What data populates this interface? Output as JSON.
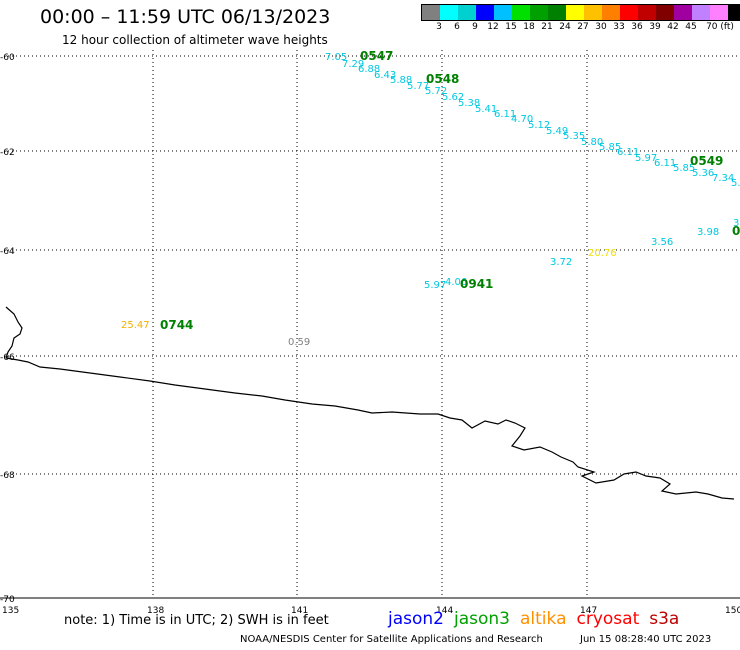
{
  "header": {
    "title": "00:00 – 11:59 UTC 06/13/2023",
    "subtitle": "12 hour collection of altimeter wave heights"
  },
  "legend": {
    "colors": [
      "#808080",
      "#00ffff",
      "#00d0d0",
      "#0000ff",
      "#00c0ff",
      "#00e000",
      "#00a000",
      "#008000",
      "#ffff00",
      "#ffc000",
      "#ff8000",
      "#ff0000",
      "#c00000",
      "#800000",
      "#a000a0",
      "#c080ff",
      "#ff80ff",
      "#000000"
    ],
    "labels": [
      "3",
      "6",
      "9",
      "12",
      "15",
      "18",
      "21",
      "24",
      "27",
      "30",
      "33",
      "36",
      "39",
      "42",
      "45",
      "70 (ft)"
    ]
  },
  "axes": {
    "lon_labels": [
      "135",
      "138",
      "141",
      "144",
      "147",
      "150"
    ],
    "lat_labels": [
      "-60",
      "-62",
      "-64",
      "-66",
      "-68",
      "-70"
    ]
  },
  "tracks": [
    {
      "label": "0547",
      "label_color": "#008000",
      "values": [
        "7.05",
        "7.29",
        "6.88",
        "6.43",
        "5.88",
        "5.77"
      ],
      "value_color": "#00c8e0"
    },
    {
      "label": "0548",
      "label_color": "#008000",
      "values": [
        "5.72",
        "5.62",
        "5.38",
        "5.41",
        "6.11",
        "4.70",
        "5.12",
        "5.49",
        "5.35",
        "5.80",
        "5.85",
        "6.11",
        "5.97",
        "6.11",
        "5.85",
        "5.36",
        "7.34",
        "5."
      ],
      "value_color": "#00c8e0"
    },
    {
      "label": "0549",
      "label_color": "#008000",
      "values": [],
      "value_color": "#00c8e0"
    },
    {
      "label": "0941",
      "label_color": "#008000",
      "values": [
        "5.97",
        "4.06",
        "3.72",
        "3.56",
        "3.98",
        "3."
      ],
      "value_color": "#00c8e0"
    },
    {
      "label": "0744",
      "label_color": "#008000",
      "values": [
        "25.47"
      ],
      "value_color": "#f0b000"
    }
  ],
  "extra_values": [
    {
      "value": "20.76",
      "color": "#f0e000"
    },
    {
      "value": "0.59",
      "color": "#808080"
    }
  ],
  "footer": {
    "note": "note: 1) Time is in UTC; 2) SWH is in feet",
    "satellites": [
      {
        "name": "jason2",
        "color": "#0000ff"
      },
      {
        "name": "jason3",
        "color": "#00a000"
      },
      {
        "name": "altika",
        "color": "#ff9000"
      },
      {
        "name": "cryosat",
        "color": "#ff0000"
      },
      {
        "name": "s3a",
        "color": "#c00000"
      }
    ],
    "credit": "NOAA/NESDIS Center for Satellite Applications and Research",
    "timestamp": "Jun 15 08:28:40 UTC 2023"
  }
}
